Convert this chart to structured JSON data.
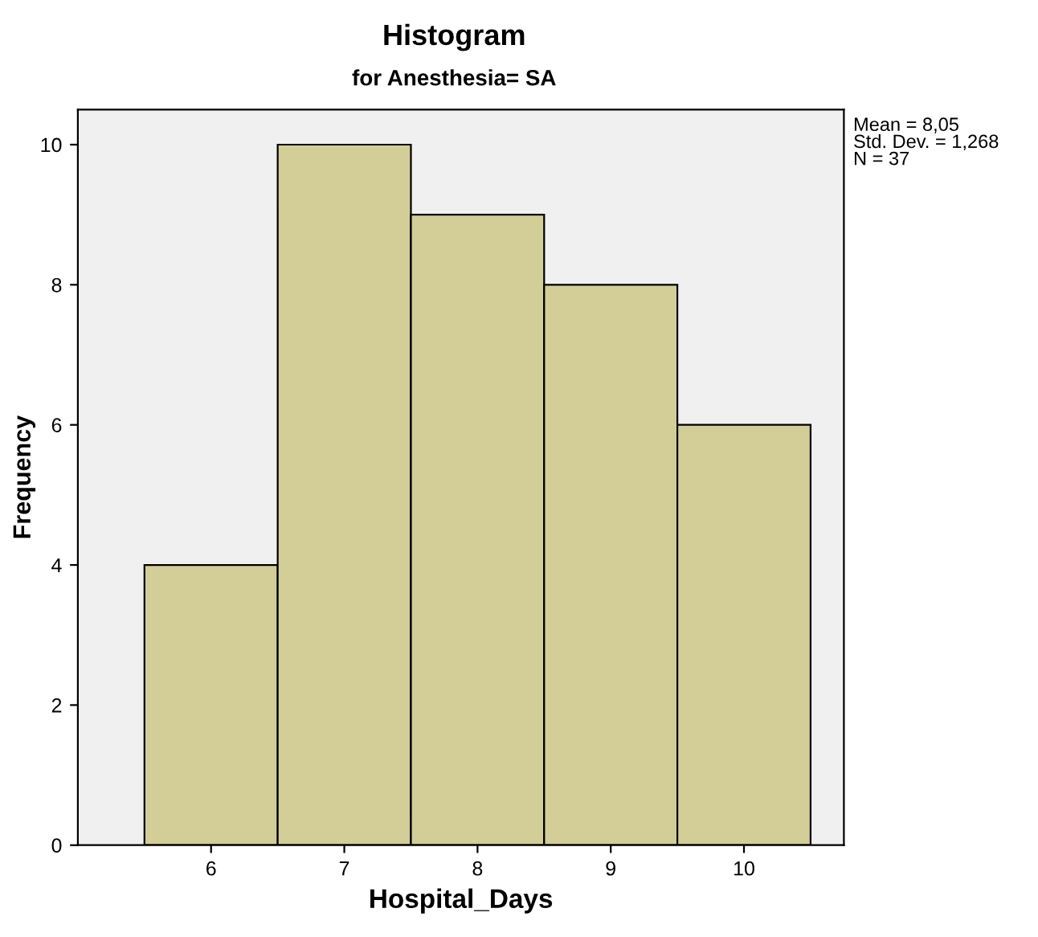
{
  "chart_data": {
    "type": "histogram",
    "title": "Histogram",
    "subtitle": "for Anesthesia= SA",
    "xlabel": "Hospital_Days",
    "ylabel": "Frequency",
    "bins": [
      5.5,
      6.5,
      7.5,
      8.5,
      9.5,
      10.5
    ],
    "values": [
      4,
      10,
      9,
      8,
      6
    ],
    "color": "#d3ce97",
    "xlim": [
      5,
      10.75
    ],
    "xticks": [
      6,
      7,
      8,
      9,
      10
    ],
    "ylim": [
      0,
      10.5
    ],
    "yticks": [
      0,
      2,
      4,
      6,
      8,
      10
    ],
    "grid": false,
    "annotations": [
      "Mean = 8,05\nStd. Dev. = 1,268\nN = 37"
    ]
  }
}
